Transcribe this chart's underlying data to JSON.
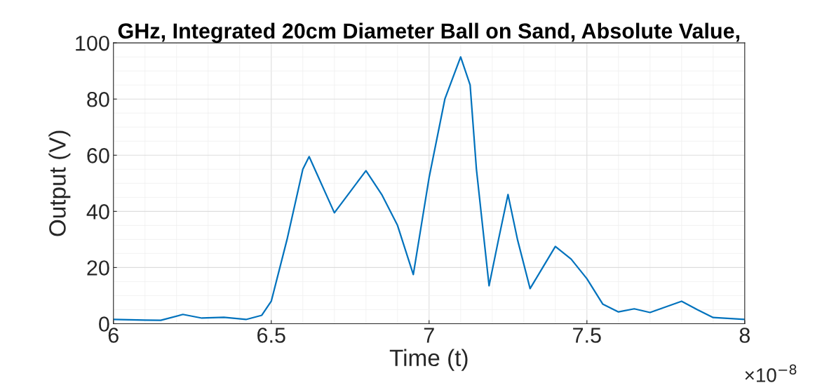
{
  "chart_data": {
    "type": "line",
    "title": "GHz, Integrated 20cm Diameter Ball on Sand, Absolute Value,",
    "xlabel": "Time (t)",
    "ylabel": "Output (V)",
    "annotations": [
      "×10$^{−8}$"
    ],
    "x": [
      6.0,
      6.1,
      6.15,
      6.22,
      6.28,
      6.35,
      6.42,
      6.47,
      6.5,
      6.55,
      6.6,
      6.62,
      6.65,
      6.7,
      6.75,
      6.8,
      6.85,
      6.9,
      6.95,
      7.0,
      7.05,
      7.1,
      7.13,
      7.15,
      7.19,
      7.22,
      7.25,
      7.28,
      7.32,
      7.36,
      7.4,
      7.45,
      7.5,
      7.55,
      7.6,
      7.65,
      7.7,
      7.75,
      7.8,
      7.85,
      7.9,
      8.0
    ],
    "series": [
      {
        "color": "#0072bd",
        "values": [
          1.5,
          1.3,
          1.2,
          3.3,
          2,
          2.3,
          1.5,
          3,
          8,
          30,
          55,
          59.5,
          52,
          39.5,
          47,
          54.5,
          46,
          35,
          17.5,
          52,
          80,
          95,
          85,
          55,
          13.5,
          30,
          46,
          30,
          12.5,
          20,
          27.5,
          23,
          16,
          7,
          4.2,
          5.3,
          4,
          6,
          8,
          5,
          2.2,
          1.5
        ]
      }
    ],
    "xlim": [
      6,
      8
    ],
    "xticks": [
      6,
      6.5,
      7,
      7.5,
      8
    ],
    "ylim": [
      0,
      100
    ],
    "yticks": [
      0,
      20,
      40,
      60,
      80,
      100
    ],
    "grid": true,
    "legend": false
  }
}
